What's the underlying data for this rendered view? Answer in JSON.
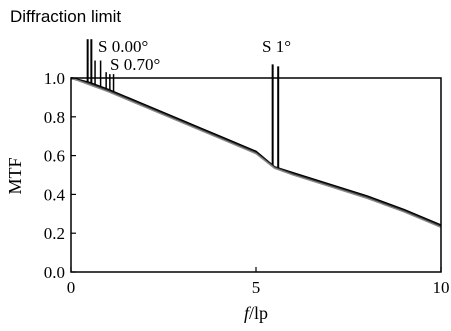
{
  "chart_data": {
    "type": "line",
    "xlabel_italic": "f",
    "xlabel_rest": "/lp",
    "ylabel": "MTF",
    "xlim": [
      0,
      10
    ],
    "ylim": [
      0.0,
      1.0
    ],
    "x_ticks": [
      "0",
      "5",
      "10"
    ],
    "y_ticks": [
      "0.0",
      "0.2",
      "0.4",
      "0.6",
      "0.8",
      "1.0"
    ],
    "annotations": {
      "diffraction": "Diffraction limit",
      "s000": "S 0.00°",
      "s070": "S 0.70°",
      "s1": "S 1°"
    },
    "series": [
      {
        "x": [
          0,
          0.5,
          1,
          2,
          3,
          4,
          5,
          5.5,
          6,
          7,
          8,
          9,
          10
        ],
        "values": [
          1.0,
          0.975,
          0.94,
          0.86,
          0.78,
          0.7,
          0.62,
          0.54,
          0.51,
          0.45,
          0.39,
          0.32,
          0.24
        ]
      },
      {
        "x": [
          0,
          0.5,
          1,
          2,
          3,
          4,
          5,
          5.5,
          6,
          7,
          8,
          9,
          10
        ],
        "values": [
          1.0,
          0.97,
          0.935,
          0.855,
          0.775,
          0.695,
          0.615,
          0.54,
          0.505,
          0.445,
          0.385,
          0.315,
          0.235
        ]
      },
      {
        "x": [
          0,
          0.5,
          1,
          2,
          3,
          4,
          5,
          5.5,
          6,
          7,
          8,
          9,
          10
        ],
        "values": [
          1.0,
          0.965,
          0.93,
          0.85,
          0.77,
          0.69,
          0.61,
          0.535,
          0.5,
          0.44,
          0.38,
          0.31,
          0.23
        ]
      }
    ],
    "spikes": [
      {
        "x": 0.45,
        "top": 1.2,
        "width": 2
      },
      {
        "x": 0.55,
        "top": 1.2,
        "width": 2
      },
      {
        "x": 0.65,
        "top": 1.09,
        "width": 1.5
      },
      {
        "x": 0.8,
        "top": 1.09,
        "width": 1.5
      },
      {
        "x": 0.95,
        "top": 1.03,
        "width": 1.5
      },
      {
        "x": 1.05,
        "top": 1.02,
        "width": 1.5
      },
      {
        "x": 1.15,
        "top": 1.02,
        "width": 1.5
      },
      {
        "x": 5.45,
        "top": 1.07,
        "width": 2
      },
      {
        "x": 5.6,
        "top": 1.06,
        "width": 2
      }
    ]
  }
}
